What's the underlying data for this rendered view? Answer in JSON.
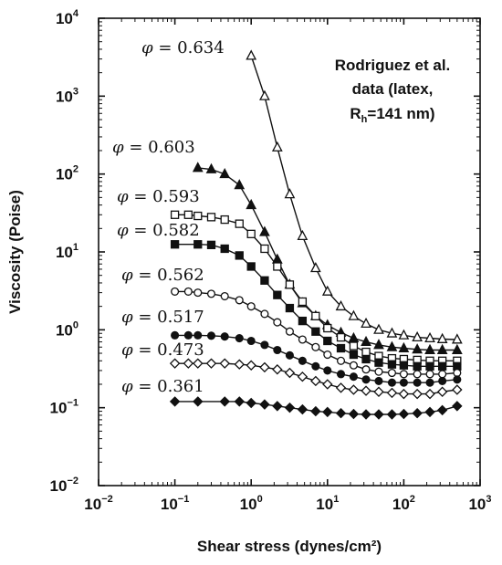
{
  "chart_data": {
    "type": "scatter",
    "log_x": true,
    "log_y": true,
    "xlim": [
      0.01,
      1000
    ],
    "ylim": [
      0.01,
      10000
    ],
    "xlabel": "Shear stress (dynes/cm²)",
    "ylabel": "Viscosity (Poise)",
    "x_ticks": [
      {
        "base": "10",
        "exp": "−2"
      },
      {
        "base": "10",
        "exp": "−1"
      },
      {
        "base": "10",
        "exp": "0"
      },
      {
        "base": "10",
        "exp": "1"
      },
      {
        "base": "10",
        "exp": "2"
      },
      {
        "base": "10",
        "exp": "3"
      }
    ],
    "y_ticks": [
      {
        "base": "10",
        "exp": "−2"
      },
      {
        "base": "10",
        "exp": "−1"
      },
      {
        "base": "10",
        "exp": "0"
      },
      {
        "base": "10",
        "exp": "1"
      },
      {
        "base": "10",
        "exp": "2"
      },
      {
        "base": "10",
        "exp": "3"
      },
      {
        "base": "10",
        "exp": "4"
      }
    ],
    "annotation": {
      "line1": "Rodriguez et al.",
      "line2": "data (latex,",
      "line3_main": "R",
      "line3_sub": "h",
      "line3_rest": "=141 nm)"
    },
    "phi_symbol": "φ",
    "series": [
      {
        "name": "0.634",
        "marker": "triangle-open",
        "x": [
          1.0,
          1.5,
          2.2,
          3.2,
          4.7,
          7,
          10,
          15,
          22,
          32,
          47,
          70,
          100,
          150,
          220,
          320,
          500
        ],
        "y": [
          3300,
          1000,
          220,
          55,
          16,
          6.2,
          3.1,
          2.0,
          1.5,
          1.2,
          1.0,
          0.9,
          0.85,
          0.8,
          0.78,
          0.76,
          0.75
        ]
      },
      {
        "name": "0.603",
        "marker": "triangle-filled",
        "x": [
          0.2,
          0.3,
          0.45,
          0.7,
          1.0,
          1.5,
          2.2,
          3.2,
          4.7,
          7,
          10,
          15,
          22,
          32,
          47,
          70,
          100,
          150,
          220,
          320,
          500
        ],
        "y": [
          120,
          115,
          100,
          72,
          40,
          18,
          8.0,
          3.8,
          2.2,
          1.5,
          1.15,
          0.92,
          0.78,
          0.7,
          0.64,
          0.6,
          0.58,
          0.56,
          0.55,
          0.55,
          0.55
        ]
      },
      {
        "name": "0.593",
        "marker": "square-open",
        "x": [
          0.1,
          0.15,
          0.2,
          0.3,
          0.45,
          0.7,
          1.0,
          1.5,
          2.2,
          3.2,
          4.7,
          7,
          10,
          15,
          22,
          32,
          47,
          70,
          100,
          150,
          220,
          320,
          500
        ],
        "y": [
          30,
          30,
          29,
          28,
          26,
          23,
          17,
          11,
          6.5,
          3.8,
          2.3,
          1.5,
          1.05,
          0.8,
          0.62,
          0.52,
          0.46,
          0.43,
          0.42,
          0.41,
          0.4,
          0.4,
          0.4
        ]
      },
      {
        "name": "0.582",
        "marker": "square-filled",
        "x": [
          0.1,
          0.2,
          0.3,
          0.45,
          0.7,
          1.0,
          1.5,
          2.2,
          3.2,
          4.7,
          7,
          10,
          15,
          22,
          32,
          47,
          70,
          100,
          150,
          220,
          320,
          500
        ],
        "y": [
          12.5,
          12.5,
          12.3,
          11,
          9,
          6.5,
          4.3,
          2.8,
          1.9,
          1.3,
          0.95,
          0.72,
          0.58,
          0.48,
          0.42,
          0.38,
          0.36,
          0.35,
          0.34,
          0.34,
          0.34,
          0.34
        ]
      },
      {
        "name": "0.562",
        "marker": "circle-open",
        "x": [
          0.1,
          0.15,
          0.2,
          0.3,
          0.45,
          0.7,
          1.0,
          1.5,
          2.2,
          3.2,
          4.7,
          7,
          10,
          15,
          22,
          32,
          47,
          70,
          100,
          150,
          220,
          320,
          500
        ],
        "y": [
          3.1,
          3.1,
          3.0,
          2.9,
          2.7,
          2.4,
          2.0,
          1.6,
          1.25,
          0.95,
          0.75,
          0.6,
          0.48,
          0.4,
          0.35,
          0.31,
          0.29,
          0.28,
          0.27,
          0.27,
          0.27,
          0.27,
          0.28
        ]
      },
      {
        "name": "0.517",
        "marker": "circle-filled",
        "x": [
          0.1,
          0.15,
          0.2,
          0.3,
          0.45,
          0.7,
          1.0,
          1.5,
          2.2,
          3.2,
          4.7,
          7,
          10,
          15,
          22,
          32,
          47,
          70,
          100,
          150,
          220,
          320,
          500
        ],
        "y": [
          0.85,
          0.85,
          0.85,
          0.84,
          0.82,
          0.78,
          0.72,
          0.64,
          0.55,
          0.47,
          0.4,
          0.34,
          0.3,
          0.27,
          0.25,
          0.23,
          0.22,
          0.21,
          0.21,
          0.21,
          0.21,
          0.22,
          0.23
        ]
      },
      {
        "name": "0.473",
        "marker": "diamond-open",
        "x": [
          0.1,
          0.15,
          0.2,
          0.3,
          0.45,
          0.7,
          1.0,
          1.5,
          2.2,
          3.2,
          4.7,
          7,
          10,
          15,
          22,
          32,
          47,
          70,
          100,
          150,
          220,
          320,
          500
        ],
        "y": [
          0.37,
          0.37,
          0.37,
          0.37,
          0.37,
          0.36,
          0.35,
          0.33,
          0.31,
          0.28,
          0.25,
          0.22,
          0.2,
          0.18,
          0.17,
          0.165,
          0.16,
          0.155,
          0.15,
          0.15,
          0.15,
          0.16,
          0.17
        ]
      },
      {
        "name": "0.361",
        "marker": "diamond-filled",
        "x": [
          0.1,
          0.2,
          0.45,
          0.7,
          1.0,
          1.5,
          2.2,
          3.2,
          4.7,
          7,
          10,
          15,
          22,
          32,
          47,
          70,
          100,
          150,
          220,
          320,
          500
        ],
        "y": [
          0.12,
          0.12,
          0.12,
          0.12,
          0.115,
          0.11,
          0.105,
          0.1,
          0.095,
          0.09,
          0.088,
          0.085,
          0.083,
          0.082,
          0.082,
          0.082,
          0.083,
          0.085,
          0.088,
          0.093,
          0.105
        ]
      }
    ]
  }
}
